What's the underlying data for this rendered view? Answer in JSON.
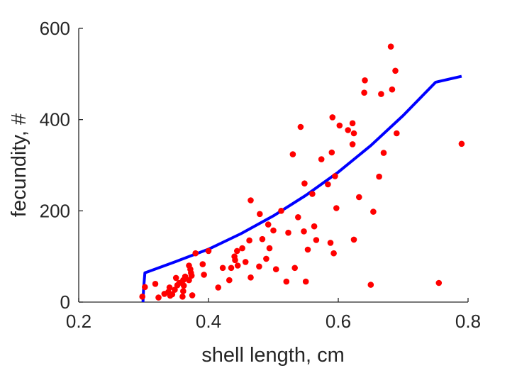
{
  "chart_data": {
    "type": "scatter",
    "xlabel": "shell length, cm",
    "ylabel": "fecundity, #",
    "xlim": [
      0.2,
      0.8
    ],
    "ylim": [
      0,
      600
    ],
    "xticks": [
      0.2,
      0.4,
      0.6,
      0.8
    ],
    "xtick_labels": [
      "0.2",
      "0.4",
      "0.6",
      "0.8"
    ],
    "yticks": [
      0,
      200,
      400,
      600
    ],
    "ytick_labels": [
      "0",
      "200",
      "400",
      "600"
    ],
    "grid": false,
    "box": "left-bottom axes only",
    "colors": {
      "points": "#ff0000",
      "fit": "#0000ff",
      "axis": "#262626"
    },
    "series": [
      {
        "kind": "points",
        "points": [
          [
            0.298,
            12
          ],
          [
            0.302,
            33
          ],
          [
            0.318,
            40
          ],
          [
            0.323,
            10
          ],
          [
            0.332,
            18
          ],
          [
            0.338,
            22
          ],
          [
            0.34,
            32
          ],
          [
            0.341,
            14
          ],
          [
            0.344,
            17
          ],
          [
            0.348,
            27
          ],
          [
            0.35,
            53
          ],
          [
            0.352,
            37
          ],
          [
            0.355,
            42
          ],
          [
            0.36,
            12
          ],
          [
            0.361,
            24
          ],
          [
            0.361,
            48
          ],
          [
            0.362,
            36
          ],
          [
            0.364,
            56
          ],
          [
            0.37,
            48
          ],
          [
            0.37,
            80
          ],
          [
            0.372,
            72
          ],
          [
            0.373,
            64
          ],
          [
            0.374,
            58
          ],
          [
            0.375,
            15
          ],
          [
            0.38,
            107
          ],
          [
            0.391,
            83
          ],
          [
            0.393,
            60
          ],
          [
            0.4,
            112
          ],
          [
            0.415,
            32
          ],
          [
            0.422,
            75
          ],
          [
            0.432,
            48
          ],
          [
            0.435,
            75
          ],
          [
            0.44,
            100
          ],
          [
            0.441,
            92
          ],
          [
            0.444,
            112
          ],
          [
            0.445,
            80
          ],
          [
            0.452,
            118
          ],
          [
            0.457,
            88
          ],
          [
            0.463,
            135
          ],
          [
            0.465,
            223
          ],
          [
            0.465,
            54
          ],
          [
            0.478,
            78
          ],
          [
            0.479,
            193
          ],
          [
            0.483,
            138
          ],
          [
            0.489,
            95
          ],
          [
            0.492,
            170
          ],
          [
            0.494,
            118
          ],
          [
            0.5,
            157
          ],
          [
            0.504,
            72
          ],
          [
            0.512,
            200
          ],
          [
            0.52,
            45
          ],
          [
            0.523,
            152
          ],
          [
            0.53,
            324
          ],
          [
            0.533,
            75
          ],
          [
            0.538,
            186
          ],
          [
            0.542,
            384
          ],
          [
            0.547,
            155
          ],
          [
            0.548,
            260
          ],
          [
            0.55,
            45
          ],
          [
            0.553,
            115
          ],
          [
            0.56,
            237
          ],
          [
            0.563,
            166
          ],
          [
            0.566,
            136
          ],
          [
            0.574,
            313
          ],
          [
            0.584,
            258
          ],
          [
            0.588,
            130
          ],
          [
            0.59,
            328
          ],
          [
            0.591,
            405
          ],
          [
            0.593,
            107
          ],
          [
            0.595,
            276
          ],
          [
            0.597,
            206
          ],
          [
            0.602,
            387
          ],
          [
            0.615,
            377
          ],
          [
            0.622,
            346
          ],
          [
            0.622,
            392
          ],
          [
            0.624,
            370
          ],
          [
            0.624,
            137
          ],
          [
            0.632,
            230
          ],
          [
            0.64,
            459
          ],
          [
            0.641,
            486
          ],
          [
            0.65,
            38
          ],
          [
            0.654,
            198
          ],
          [
            0.663,
            275
          ],
          [
            0.666,
            456
          ],
          [
            0.67,
            327
          ],
          [
            0.681,
            560
          ],
          [
            0.683,
            466
          ],
          [
            0.688,
            507
          ],
          [
            0.69,
            370
          ],
          [
            0.755,
            42
          ],
          [
            0.79,
            347
          ]
        ]
      },
      {
        "kind": "fit-line",
        "points": [
          [
            0.299,
            0
          ],
          [
            0.3,
            30
          ],
          [
            0.302,
            64
          ],
          [
            0.35,
            89
          ],
          [
            0.4,
            116
          ],
          [
            0.45,
            150
          ],
          [
            0.5,
            189
          ],
          [
            0.55,
            234
          ],
          [
            0.6,
            285
          ],
          [
            0.65,
            343
          ],
          [
            0.7,
            409
          ],
          [
            0.75,
            482
          ],
          [
            0.79,
            495
          ]
        ]
      }
    ]
  }
}
